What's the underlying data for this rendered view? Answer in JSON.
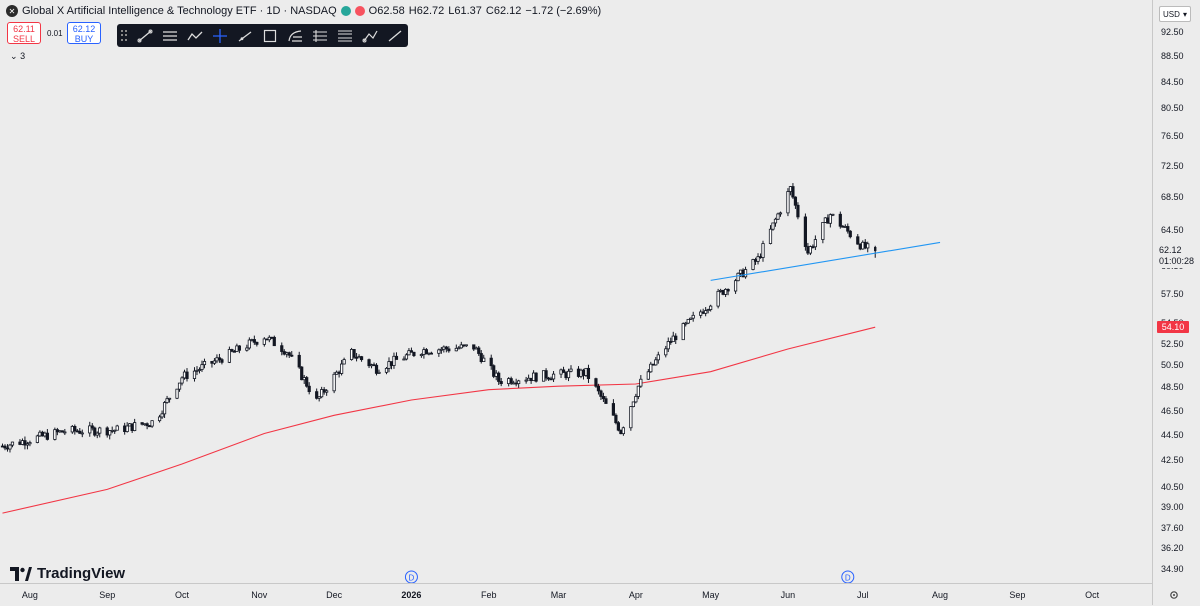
{
  "legend": {
    "title": "Global X Artificial Intelligence & Technology ETF · 1D · NASDAQ",
    "o_label": "O",
    "o": "62.58",
    "h_label": "H",
    "h": "62.72",
    "l_label": "L",
    "l": "61.37",
    "c_label": "C",
    "c": "62.12",
    "change": "−1.72 (−2.69%)",
    "status_colors": [
      "#26a69a",
      "#f7525f"
    ]
  },
  "trade": {
    "sell_price": "62.11",
    "sell_label": "SELL",
    "spread": "0.01",
    "buy_price": "62.12",
    "buy_label": "BUY"
  },
  "indicators_collapsed_count": "3",
  "toolbar": {
    "tools": [
      "trend-line-icon",
      "horizontal-line-icon",
      "path-icon",
      "crosshair-icon",
      "ray-icon",
      "rectangle-icon",
      "fib-icon",
      "long-position-icon",
      "measure-icon",
      "brush-icon",
      "line-icon"
    ]
  },
  "axis": {
    "currency": "USD",
    "settings_icon": "gear-icon"
  },
  "last_price_label": "62.12",
  "countdown": "01:00:28",
  "ma_value_label": "54.10",
  "logo_text": "TradingView",
  "colors": {
    "bull": "#131722",
    "ma": "#f23645",
    "trend": "#2196f3",
    "dividend": "#2962ff"
  },
  "chart_data": {
    "type": "candlestick",
    "title": "Global X Artificial Intelligence & Technology ETF · 1D · NASDAQ",
    "y_scale": "log",
    "ylim": [
      34.0,
      98.0
    ],
    "y_ticks": [
      "92.50",
      "88.50",
      "84.50",
      "80.50",
      "76.50",
      "72.50",
      "68.50",
      "64.50",
      "60.50",
      "57.50",
      "54.50",
      "52.50",
      "50.50",
      "48.50",
      "46.50",
      "44.50",
      "42.50",
      "40.50",
      "39.00",
      "37.60",
      "36.20",
      "34.90"
    ],
    "x_ticks": [
      "Aug",
      "Sep",
      "Oct",
      "Nov",
      "Dec",
      "2026",
      "Feb",
      "Mar",
      "Apr",
      "May",
      "Jun",
      "Jul",
      "Aug",
      "Sep",
      "Oct"
    ],
    "dividend_markers": [
      {
        "date": "2026-01-01",
        "label": "D"
      },
      {
        "date": "2026-06-25",
        "label": "D"
      }
    ],
    "price_path": [
      [
        "2025-07-21",
        43.6
      ],
      [
        "2025-08-15",
        44.8
      ],
      [
        "2025-09-05",
        44.9
      ],
      [
        "2025-09-20",
        45.6
      ],
      [
        "2025-10-01",
        49.4
      ],
      [
        "2025-10-20",
        51.5
      ],
      [
        "2025-11-03",
        53.2
      ],
      [
        "2025-11-12",
        51.8
      ],
      [
        "2025-11-24",
        47.3
      ],
      [
        "2025-12-08",
        51.6
      ],
      [
        "2025-12-18",
        50.2
      ],
      [
        "2026-01-05",
        51.9
      ],
      [
        "2026-01-26",
        52.2
      ],
      [
        "2026-02-05",
        49.1
      ],
      [
        "2026-02-25",
        49.6
      ],
      [
        "2026-03-12",
        49.8
      ],
      [
        "2026-03-26",
        44.8
      ],
      [
        "2026-04-02",
        48.6
      ],
      [
        "2026-04-15",
        52.8
      ],
      [
        "2026-05-01",
        56.6
      ],
      [
        "2026-05-20",
        61.2
      ],
      [
        "2026-06-02",
        69.6
      ],
      [
        "2026-06-09",
        62.0
      ],
      [
        "2026-06-18",
        66.4
      ],
      [
        "2026-07-01",
        62.6
      ],
      [
        "2026-07-06",
        62.1
      ]
    ],
    "last_candle": {
      "date": "2026-07-06",
      "open": 62.58,
      "high": 62.72,
      "low": 61.37,
      "close": 62.12
    },
    "series": [
      {
        "type": "line",
        "points": [
          [
            "2025-07-21",
            38.6
          ],
          [
            "2025-09-01",
            40.3
          ],
          [
            "2025-10-01",
            42.2
          ],
          [
            "2025-11-03",
            44.6
          ],
          [
            "2025-12-01",
            46.1
          ],
          [
            "2026-01-01",
            47.4
          ],
          [
            "2026-02-01",
            48.3
          ],
          [
            "2026-03-01",
            48.6
          ],
          [
            "2026-04-01",
            48.8
          ],
          [
            "2026-05-01",
            49.9
          ],
          [
            "2026-06-01",
            52.0
          ],
          [
            "2026-07-06",
            54.1
          ]
        ]
      },
      {
        "type": "line",
        "points": [
          [
            "2026-05-01",
            58.9
          ],
          [
            "2026-08-01",
            63.1
          ]
        ]
      }
    ]
  }
}
